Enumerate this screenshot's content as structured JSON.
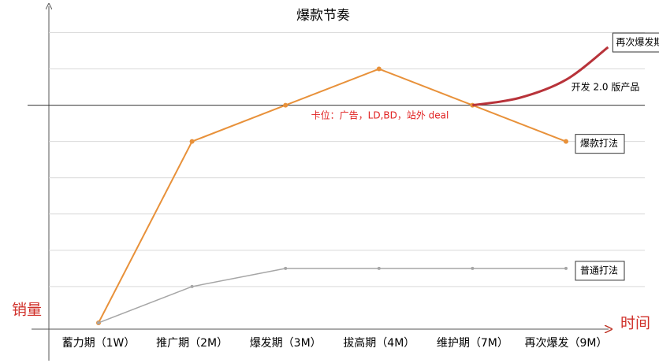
{
  "chart_data": {
    "type": "line",
    "title": "爆款节奏",
    "y_label": "销量",
    "x_label": "时间",
    "categories": [
      "蓄力期（1W）",
      "推广期（2M）",
      "爆发期（3M）",
      "拔高期（4M）",
      "维护期（7M）",
      "再次爆发（9M）"
    ],
    "series": [
      {
        "name": "爆款打法",
        "color": "#e8913a",
        "values": [
          0,
          5,
          6,
          7,
          6,
          5
        ]
      },
      {
        "name": "普通打法",
        "color": "#a6a6a6",
        "values": [
          0,
          1,
          1.5,
          1.5,
          1.5,
          1.5
        ]
      },
      {
        "name": "再次爆发期",
        "color": "#b8333a",
        "x": [
          4,
          4.5,
          5,
          5.45
        ],
        "values": [
          6,
          6.2,
          6.7,
          7.6
        ]
      }
    ],
    "annotations": [
      {
        "text": "卡位：广告，LD,BD，站外 deal",
        "color": "#e02020"
      },
      {
        "text": "开发 2.0 版产品",
        "color": "#000000"
      }
    ],
    "ylim": [
      0,
      8.9
    ],
    "ygrid": [
      1,
      2,
      3,
      4,
      5,
      7,
      8
    ],
    "reference_line": 6
  }
}
